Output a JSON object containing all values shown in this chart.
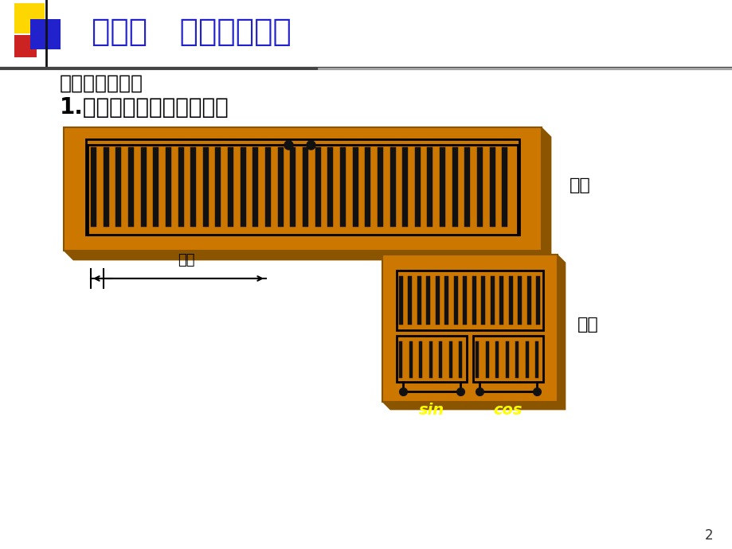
{
  "title": "第三节   大位移传感器",
  "subtitle1": "三、感应同步器",
  "subtitle2": "1.感应同步器的结构和原理",
  "title_color": "#2222CC",
  "label_dingchi": "定尺",
  "label_huachi": "滑尺",
  "label_jieju": "节距",
  "label_sin": "sin",
  "label_cos": "cos",
  "orange_color": "#CC7700",
  "orange_dark": "#8B5500",
  "black_color": "#000000",
  "yellow_color": "#FFFF00",
  "bg_color": "#FFFFFF"
}
